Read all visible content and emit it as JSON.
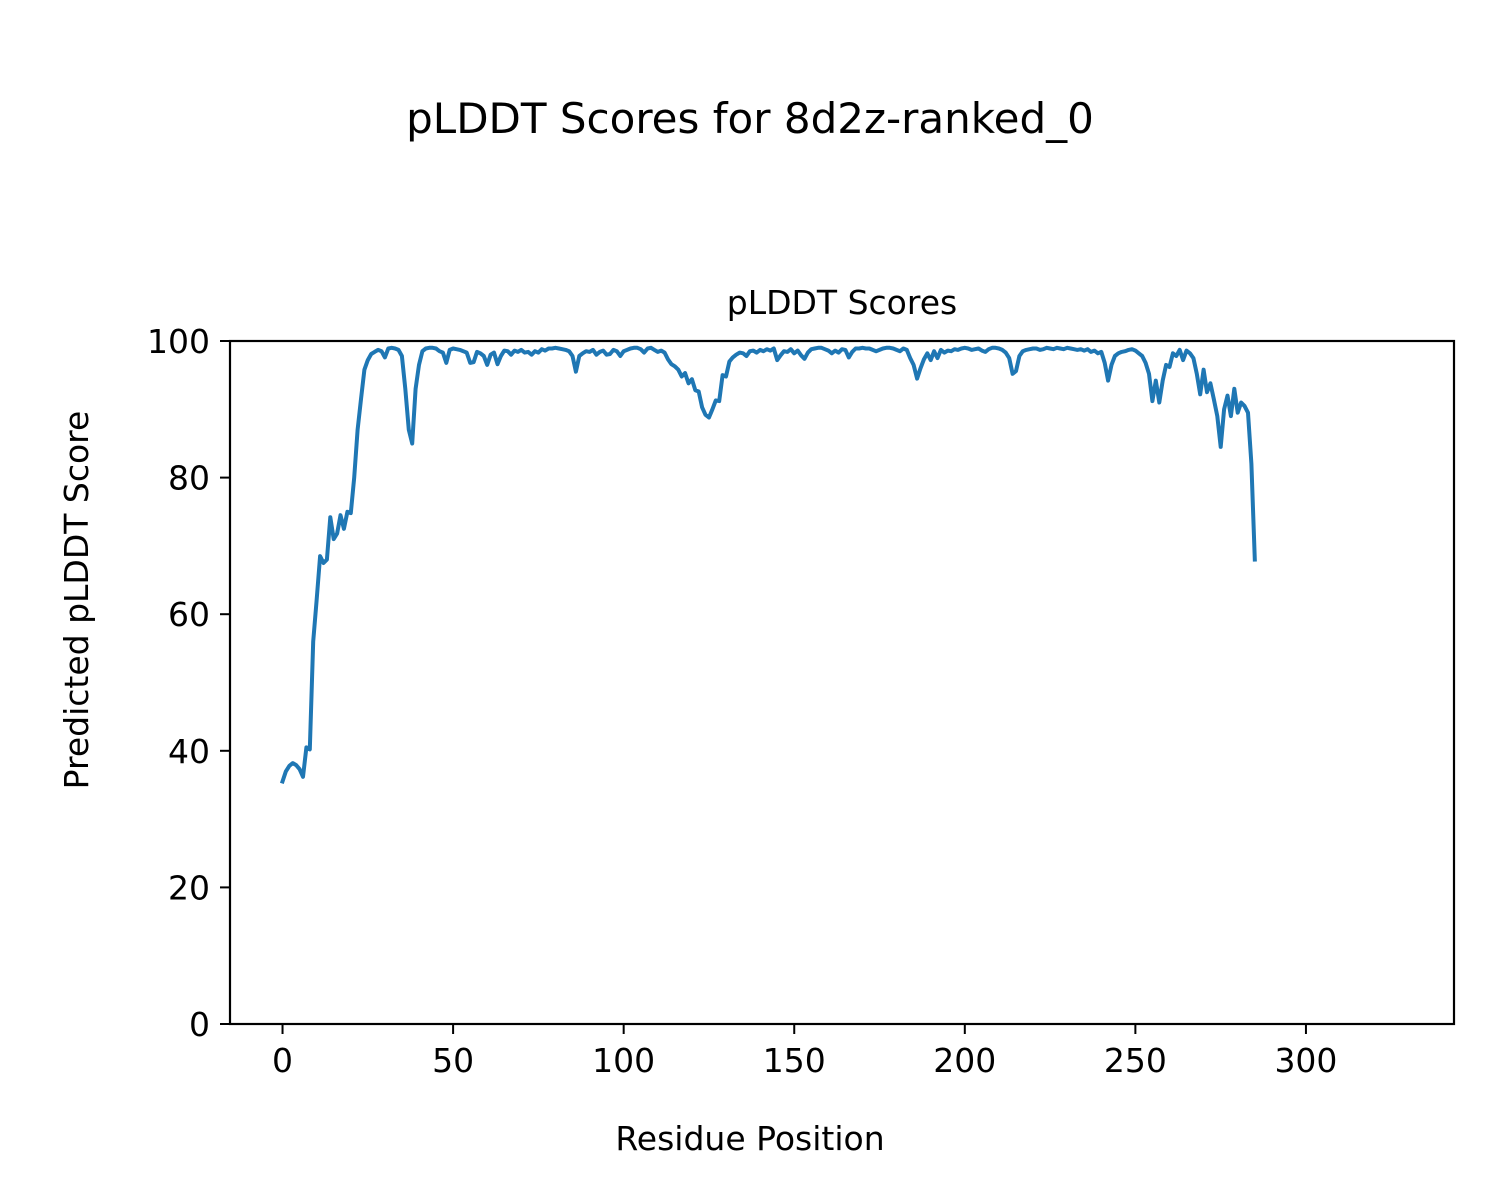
{
  "chart_data": {
    "type": "line",
    "suptitle": "pLDDT Scores for 8d2z-ranked_0",
    "title": "pLDDT Scores",
    "xlabel": "Residue Position",
    "ylabel": "Predicted pLDDT Score",
    "xlim": [
      -15.4,
      343.4
    ],
    "ylim": [
      0,
      100
    ],
    "xticks": [
      0,
      50,
      100,
      150,
      200,
      250,
      300
    ],
    "yticks": [
      0,
      20,
      40,
      60,
      80,
      100
    ],
    "grid": false,
    "line_color": "#1f77b4",
    "series": [
      {
        "points": [
          [
            0,
            35.5
          ],
          [
            1,
            37
          ],
          [
            2,
            37.8
          ],
          [
            3,
            38.2
          ],
          [
            4,
            37.9
          ],
          [
            5,
            37.3
          ],
          [
            6,
            36.2
          ],
          [
            7,
            40.5
          ],
          [
            8,
            40.2
          ],
          [
            9,
            56
          ],
          [
            10,
            62
          ],
          [
            11,
            68.5
          ],
          [
            12,
            67.5
          ],
          [
            13,
            68
          ],
          [
            14,
            74.2
          ],
          [
            15,
            71
          ],
          [
            16,
            71.8
          ],
          [
            17,
            74.5
          ],
          [
            18,
            72.5
          ],
          [
            19,
            75
          ],
          [
            20,
            74.8
          ],
          [
            21,
            80
          ],
          [
            22,
            87
          ],
          [
            23,
            91.5
          ],
          [
            24,
            95.8
          ],
          [
            25,
            97.2
          ],
          [
            26,
            98.1
          ],
          [
            27,
            98.4
          ],
          [
            28,
            98.7
          ],
          [
            29,
            98.5
          ],
          [
            30,
            97.6
          ],
          [
            31,
            98.9
          ],
          [
            32,
            99
          ],
          [
            33,
            98.9
          ],
          [
            34,
            98.7
          ],
          [
            35,
            97.8
          ],
          [
            36,
            93
          ],
          [
            37,
            87
          ],
          [
            38,
            85
          ],
          [
            39,
            93
          ],
          [
            40,
            96.5
          ],
          [
            41,
            98.5
          ],
          [
            42,
            98.9
          ],
          [
            43,
            99
          ],
          [
            44,
            99
          ],
          [
            45,
            98.9
          ],
          [
            46,
            98.5
          ],
          [
            47,
            98.3
          ],
          [
            48,
            96.8
          ],
          [
            49,
            98.7
          ],
          [
            50,
            98.9
          ],
          [
            51,
            98.8
          ],
          [
            52,
            98.7
          ],
          [
            53,
            98.5
          ],
          [
            54,
            98.3
          ],
          [
            55,
            96.8
          ],
          [
            56,
            96.9
          ],
          [
            57,
            98.4
          ],
          [
            58,
            98.2
          ],
          [
            59,
            97.8
          ],
          [
            60,
            96.5
          ],
          [
            61,
            98
          ],
          [
            62,
            98.3
          ],
          [
            63,
            96.6
          ],
          [
            64,
            97.8
          ],
          [
            65,
            98.6
          ],
          [
            66,
            98.5
          ],
          [
            67,
            98
          ],
          [
            68,
            98.6
          ],
          [
            69,
            98.4
          ],
          [
            70,
            98.7
          ],
          [
            71,
            98.3
          ],
          [
            72,
            98.4
          ],
          [
            73,
            98
          ],
          [
            74,
            98.5
          ],
          [
            75,
            98.3
          ],
          [
            76,
            98.8
          ],
          [
            77,
            98.6
          ],
          [
            78,
            98.9
          ],
          [
            79,
            98.9
          ],
          [
            80,
            99
          ],
          [
            81,
            98.9
          ],
          [
            82,
            98.8
          ],
          [
            83,
            98.7
          ],
          [
            84,
            98.5
          ],
          [
            85,
            97.8
          ],
          [
            86,
            95.5
          ],
          [
            87,
            97.8
          ],
          [
            88,
            98.2
          ],
          [
            89,
            98.5
          ],
          [
            90,
            98.4
          ],
          [
            91,
            98.7
          ],
          [
            92,
            98
          ],
          [
            93,
            98.4
          ],
          [
            94,
            98.6
          ],
          [
            95,
            98
          ],
          [
            96,
            98.1
          ],
          [
            97,
            98.7
          ],
          [
            98,
            98.5
          ],
          [
            99,
            97.8
          ],
          [
            100,
            98.5
          ],
          [
            101,
            98.7
          ],
          [
            102,
            98.9
          ],
          [
            103,
            99
          ],
          [
            104,
            99
          ],
          [
            105,
            98.8
          ],
          [
            106,
            98.3
          ],
          [
            107,
            98.9
          ],
          [
            108,
            99
          ],
          [
            109,
            98.7
          ],
          [
            110,
            98.4
          ],
          [
            111,
            98.6
          ],
          [
            112,
            98.3
          ],
          [
            113,
            97.3
          ],
          [
            114,
            96.6
          ],
          [
            115,
            96.3
          ],
          [
            116,
            95.8
          ],
          [
            117,
            94.8
          ],
          [
            118,
            95.3
          ],
          [
            119,
            93.8
          ],
          [
            120,
            94.4
          ],
          [
            121,
            92.8
          ],
          [
            122,
            92.6
          ],
          [
            123,
            90.3
          ],
          [
            124,
            89.2
          ],
          [
            125,
            88.8
          ],
          [
            126,
            90
          ],
          [
            127,
            91.3
          ],
          [
            128,
            91.2
          ],
          [
            129,
            95
          ],
          [
            130,
            94.8
          ],
          [
            131,
            97
          ],
          [
            132,
            97.6
          ],
          [
            133,
            98
          ],
          [
            134,
            98.3
          ],
          [
            135,
            98.2
          ],
          [
            136,
            97.8
          ],
          [
            137,
            98.5
          ],
          [
            138,
            98.6
          ],
          [
            139,
            98.3
          ],
          [
            140,
            98.7
          ],
          [
            141,
            98.5
          ],
          [
            142,
            98.8
          ],
          [
            143,
            98.6
          ],
          [
            144,
            98.9
          ],
          [
            145,
            97.2
          ],
          [
            146,
            97.9
          ],
          [
            147,
            98.5
          ],
          [
            148,
            98.4
          ],
          [
            149,
            98.8
          ],
          [
            150,
            98.2
          ],
          [
            151,
            98.6
          ],
          [
            152,
            97.9
          ],
          [
            153,
            97.4
          ],
          [
            154,
            98.3
          ],
          [
            155,
            98.8
          ],
          [
            156,
            98.9
          ],
          [
            157,
            99
          ],
          [
            158,
            99
          ],
          [
            159,
            98.8
          ],
          [
            160,
            98.6
          ],
          [
            161,
            98.2
          ],
          [
            162,
            98.6
          ],
          [
            163,
            98.3
          ],
          [
            164,
            98.8
          ],
          [
            165,
            98.7
          ],
          [
            166,
            97.6
          ],
          [
            167,
            98.4
          ],
          [
            168,
            98.9
          ],
          [
            169,
            98.9
          ],
          [
            170,
            99
          ],
          [
            171,
            98.9
          ],
          [
            172,
            98.9
          ],
          [
            173,
            98.7
          ],
          [
            174,
            98.5
          ],
          [
            175,
            98.7
          ],
          [
            176,
            98.9
          ],
          [
            177,
            99
          ],
          [
            178,
            99
          ],
          [
            179,
            98.9
          ],
          [
            180,
            98.7
          ],
          [
            181,
            98.5
          ],
          [
            182,
            98.9
          ],
          [
            183,
            98.7
          ],
          [
            184,
            97.5
          ],
          [
            185,
            96.5
          ],
          [
            186,
            94.5
          ],
          [
            187,
            96
          ],
          [
            188,
            97.3
          ],
          [
            189,
            98.2
          ],
          [
            190,
            97.2
          ],
          [
            191,
            98.5
          ],
          [
            192,
            97.5
          ],
          [
            193,
            98.7
          ],
          [
            194,
            98.3
          ],
          [
            195,
            98.6
          ],
          [
            196,
            98.5
          ],
          [
            197,
            98.8
          ],
          [
            198,
            98.7
          ],
          [
            199,
            98.9
          ],
          [
            200,
            99
          ],
          [
            201,
            98.9
          ],
          [
            202,
            98.7
          ],
          [
            203,
            98.8
          ],
          [
            204,
            98.9
          ],
          [
            205,
            98.6
          ],
          [
            206,
            98.4
          ],
          [
            207,
            98.8
          ],
          [
            208,
            99
          ],
          [
            209,
            99
          ],
          [
            210,
            98.9
          ],
          [
            211,
            98.7
          ],
          [
            212,
            98.3
          ],
          [
            213,
            97.5
          ],
          [
            214,
            95.2
          ],
          [
            215,
            95.6
          ],
          [
            216,
            97.8
          ],
          [
            217,
            98.5
          ],
          [
            218,
            98.7
          ],
          [
            219,
            98.8
          ],
          [
            220,
            98.9
          ],
          [
            221,
            98.9
          ],
          [
            222,
            98.7
          ],
          [
            223,
            98.8
          ],
          [
            224,
            99
          ],
          [
            225,
            98.9
          ],
          [
            226,
            98.8
          ],
          [
            227,
            99
          ],
          [
            228,
            98.9
          ],
          [
            229,
            98.8
          ],
          [
            230,
            99
          ],
          [
            231,
            98.9
          ],
          [
            232,
            98.8
          ],
          [
            233,
            98.7
          ],
          [
            234,
            98.8
          ],
          [
            235,
            98.6
          ],
          [
            236,
            98.8
          ],
          [
            237,
            98.4
          ],
          [
            238,
            98.6
          ],
          [
            239,
            98.2
          ],
          [
            240,
            98.4
          ],
          [
            241,
            96.8
          ],
          [
            242,
            94.2
          ],
          [
            243,
            96.5
          ],
          [
            244,
            97.8
          ],
          [
            245,
            98.2
          ],
          [
            246,
            98.4
          ],
          [
            247,
            98.5
          ],
          [
            248,
            98.7
          ],
          [
            249,
            98.8
          ],
          [
            250,
            98.6
          ],
          [
            251,
            98.2
          ],
          [
            252,
            97.8
          ],
          [
            253,
            96.8
          ],
          [
            254,
            95.2
          ],
          [
            255,
            91.2
          ],
          [
            256,
            94.2
          ],
          [
            257,
            91
          ],
          [
            258,
            94.2
          ],
          [
            259,
            96.5
          ],
          [
            260,
            96.2
          ],
          [
            261,
            98.2
          ],
          [
            262,
            97.8
          ],
          [
            263,
            98.7
          ],
          [
            264,
            97.2
          ],
          [
            265,
            98.6
          ],
          [
            266,
            98.2
          ],
          [
            267,
            97.5
          ],
          [
            268,
            95.2
          ],
          [
            269,
            92.2
          ],
          [
            270,
            95.8
          ],
          [
            271,
            92.5
          ],
          [
            272,
            93.8
          ],
          [
            273,
            91.5
          ],
          [
            274,
            89
          ],
          [
            275,
            84.5
          ],
          [
            276,
            90
          ],
          [
            277,
            92
          ],
          [
            278,
            89
          ],
          [
            279,
            93
          ],
          [
            280,
            89.5
          ],
          [
            281,
            91
          ],
          [
            282,
            90.5
          ],
          [
            283,
            89.5
          ],
          [
            284,
            82
          ],
          [
            285,
            68
          ]
        ]
      }
    ]
  }
}
